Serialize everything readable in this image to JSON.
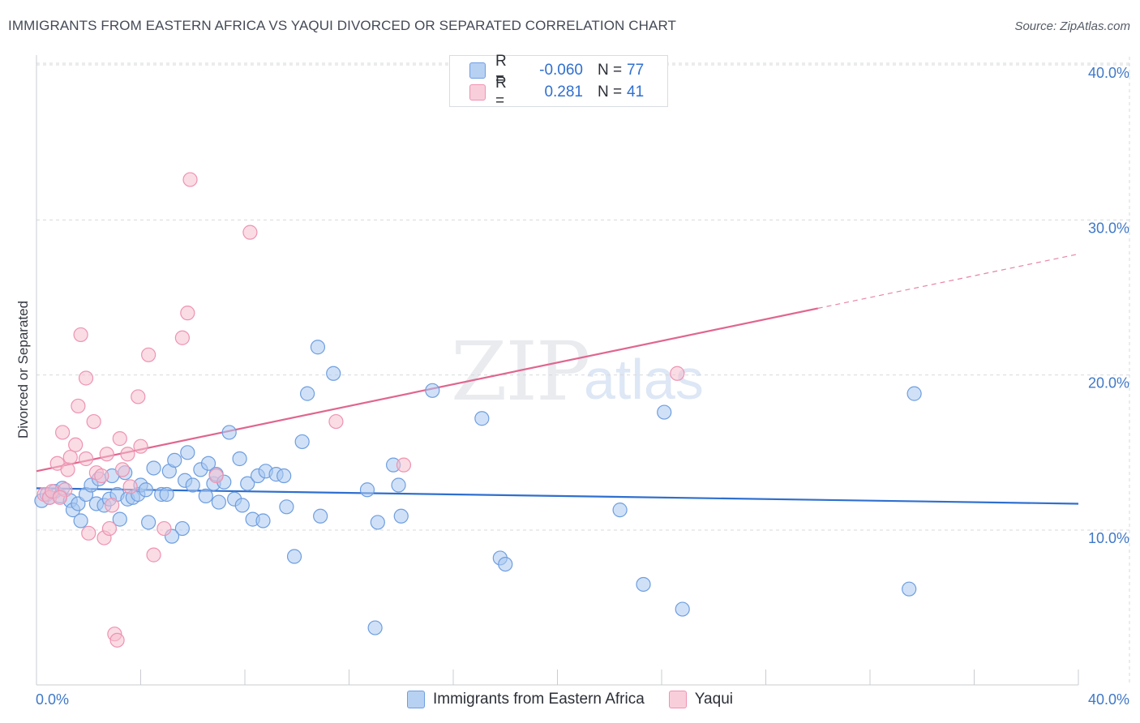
{
  "title": "IMMIGRANTS FROM EASTERN AFRICA VS YAQUI DIVORCED OR SEPARATED CORRELATION CHART",
  "source": "Source: ZipAtlas.com",
  "watermark": {
    "zip": "ZIP",
    "atlas": "atlas"
  },
  "colors": {
    "blue_fill": "#a9c8f0",
    "blue_stroke": "#6e9ee0",
    "blue_line": "#2f6fcf",
    "pink_fill": "#f6bfd0",
    "pink_stroke": "#ee93b1",
    "pink_line": "#e0668e",
    "tick_label": "#3f78c8",
    "grid": "#d6d9de"
  },
  "legend": {
    "rows": [
      {
        "r_label": "R =",
        "r_value": "-0.060",
        "n_label": "N =",
        "n_value": "77"
      },
      {
        "r_label": "R =",
        "r_value": "0.281",
        "n_label": "N =",
        "n_value": "41"
      }
    ]
  },
  "chart_data": {
    "type": "scatter",
    "title": "IMMIGRANTS FROM EASTERN AFRICA VS YAQUI DIVORCED OR SEPARATED CORRELATION CHART",
    "xlabel": "",
    "ylabel": "Divorced or Separated",
    "xlim": [
      0,
      40
    ],
    "ylim": [
      0,
      42
    ],
    "x_ticks": [
      0,
      4,
      8,
      12,
      16,
      20,
      24,
      28,
      32,
      36,
      40
    ],
    "x_tick_labels": {
      "0": "0.0%",
      "40": "40.0%"
    },
    "y_ticks": [
      10,
      20,
      30,
      40
    ],
    "y_tick_labels": [
      "10.0%",
      "20.0%",
      "30.0%",
      "40.0%"
    ],
    "grid": true,
    "legend_position": "top-center",
    "series": [
      {
        "name": "Immigrants from Eastern Africa",
        "color": "#a9c8f0",
        "trend": {
          "x": [
            0,
            40
          ],
          "y": [
            12.7,
            11.7
          ],
          "dashed_from": null
        },
        "points": [
          [
            0.2,
            11.9
          ],
          [
            0.4,
            12.3
          ],
          [
            0.5,
            12.1
          ],
          [
            0.7,
            12.5
          ],
          [
            0.9,
            12.2
          ],
          [
            1.0,
            12.7
          ],
          [
            1.3,
            11.9
          ],
          [
            1.4,
            11.3
          ],
          [
            1.6,
            11.7
          ],
          [
            1.7,
            10.6
          ],
          [
            1.9,
            12.3
          ],
          [
            2.1,
            12.9
          ],
          [
            2.3,
            11.7
          ],
          [
            2.4,
            13.3
          ],
          [
            2.6,
            11.6
          ],
          [
            2.8,
            12.0
          ],
          [
            2.9,
            13.5
          ],
          [
            3.1,
            12.3
          ],
          [
            3.2,
            10.7
          ],
          [
            3.4,
            13.7
          ],
          [
            3.5,
            12.0
          ],
          [
            3.7,
            12.1
          ],
          [
            3.9,
            12.3
          ],
          [
            4.0,
            12.9
          ],
          [
            4.2,
            12.6
          ],
          [
            4.3,
            10.5
          ],
          [
            4.5,
            14.0
          ],
          [
            4.8,
            12.3
          ],
          [
            5.0,
            12.3
          ],
          [
            5.1,
            13.8
          ],
          [
            5.3,
            14.5
          ],
          [
            5.6,
            10.1
          ],
          [
            5.7,
            13.2
          ],
          [
            5.8,
            15.0
          ],
          [
            6.0,
            12.9
          ],
          [
            6.3,
            13.9
          ],
          [
            6.5,
            12.2
          ],
          [
            6.6,
            14.3
          ],
          [
            6.8,
            13.0
          ],
          [
            6.9,
            13.6
          ],
          [
            7.0,
            11.8
          ],
          [
            7.2,
            13.1
          ],
          [
            7.4,
            16.3
          ],
          [
            7.6,
            12.0
          ],
          [
            7.8,
            14.6
          ],
          [
            7.9,
            11.6
          ],
          [
            8.1,
            13.0
          ],
          [
            8.3,
            10.7
          ],
          [
            8.5,
            13.5
          ],
          [
            8.7,
            10.6
          ],
          [
            8.8,
            13.8
          ],
          [
            9.2,
            13.6
          ],
          [
            9.5,
            13.5
          ],
          [
            9.6,
            11.5
          ],
          [
            9.9,
            8.3
          ],
          [
            10.2,
            15.7
          ],
          [
            10.4,
            18.8
          ],
          [
            10.8,
            21.8
          ],
          [
            10.9,
            10.9
          ],
          [
            11.4,
            20.1
          ],
          [
            12.7,
            12.6
          ],
          [
            13.0,
            3.7
          ],
          [
            13.1,
            10.5
          ],
          [
            13.7,
            14.2
          ],
          [
            13.9,
            12.9
          ],
          [
            14.0,
            10.9
          ],
          [
            15.2,
            19.0
          ],
          [
            17.1,
            17.2
          ],
          [
            17.8,
            8.2
          ],
          [
            18.0,
            7.8
          ],
          [
            22.4,
            11.3
          ],
          [
            23.3,
            6.5
          ],
          [
            24.1,
            17.6
          ],
          [
            24.8,
            4.9
          ],
          [
            33.5,
            6.2
          ],
          [
            33.7,
            18.8
          ],
          [
            5.2,
            9.6
          ]
        ]
      },
      {
        "name": "Yaqui",
        "color": "#f6bfd0",
        "trend": {
          "x": [
            0,
            40
          ],
          "y": [
            13.8,
            27.8
          ],
          "dashed_from": 30
        },
        "points": [
          [
            0.3,
            12.3
          ],
          [
            0.5,
            12.1
          ],
          [
            0.6,
            12.5
          ],
          [
            0.8,
            14.3
          ],
          [
            1.0,
            16.3
          ],
          [
            1.2,
            13.9
          ],
          [
            1.3,
            14.7
          ],
          [
            1.5,
            15.5
          ],
          [
            1.6,
            18.0
          ],
          [
            1.7,
            22.6
          ],
          [
            1.9,
            14.6
          ],
          [
            1.9,
            19.8
          ],
          [
            2.0,
            9.8
          ],
          [
            2.2,
            17.0
          ],
          [
            2.3,
            13.7
          ],
          [
            2.5,
            13.5
          ],
          [
            2.6,
            9.5
          ],
          [
            2.7,
            14.9
          ],
          [
            2.8,
            10.1
          ],
          [
            2.9,
            11.6
          ],
          [
            3.0,
            3.3
          ],
          [
            3.1,
            2.9
          ],
          [
            3.2,
            15.9
          ],
          [
            3.3,
            13.9
          ],
          [
            3.5,
            14.9
          ],
          [
            3.9,
            18.6
          ],
          [
            4.0,
            15.4
          ],
          [
            4.3,
            21.3
          ],
          [
            4.5,
            8.4
          ],
          [
            4.9,
            10.1
          ],
          [
            5.6,
            22.4
          ],
          [
            5.8,
            24.0
          ],
          [
            5.9,
            32.6
          ],
          [
            6.9,
            13.5
          ],
          [
            8.2,
            29.2
          ],
          [
            11.5,
            17.0
          ],
          [
            14.1,
            14.2
          ],
          [
            24.6,
            20.1
          ],
          [
            1.1,
            12.6
          ],
          [
            0.9,
            12.1
          ],
          [
            3.6,
            12.8
          ]
        ]
      }
    ]
  },
  "bottom_legend": [
    {
      "label": "Immigrants from Eastern Africa"
    },
    {
      "label": "Yaqui"
    }
  ]
}
